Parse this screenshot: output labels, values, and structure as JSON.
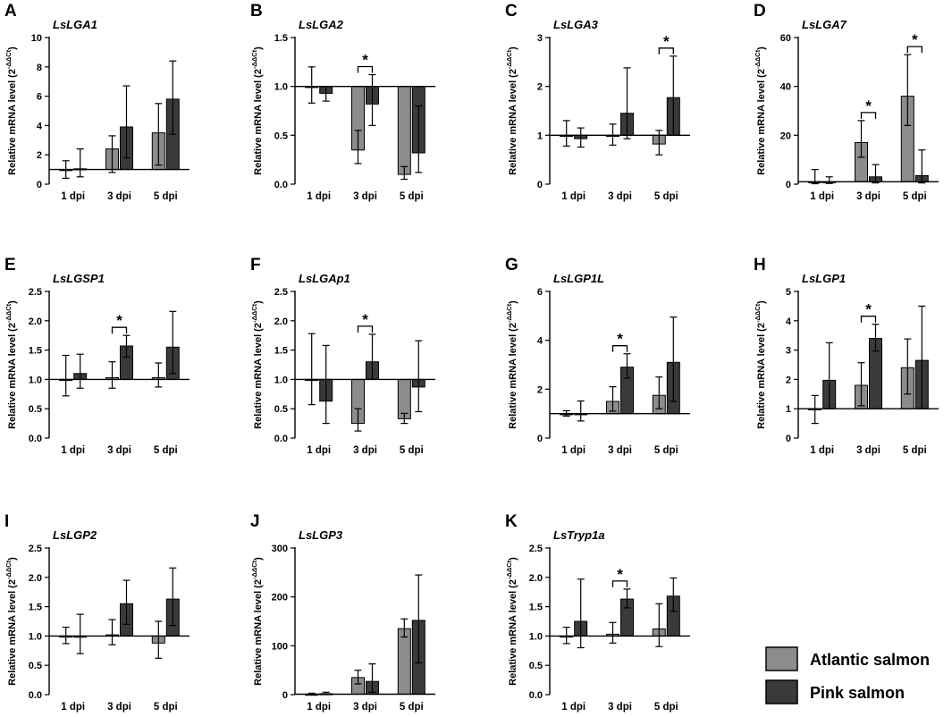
{
  "figure": {
    "x_categories": [
      "1 dpi",
      "3 dpi",
      "5 dpi"
    ],
    "y_label": "Relative mRNA level (2",
    "y_label_sup": "-ΔΔCt",
    "y_label_close": ")",
    "significance_marker": "*",
    "legend": [
      {
        "label": "Atlantic salmon",
        "color": "#8c8c8c"
      },
      {
        "label": "Pink salmon",
        "color": "#3a3a3a"
      }
    ]
  },
  "chart_data": [
    {
      "letter": "A",
      "type": "bar",
      "title": "LsLGA1",
      "ylim": [
        0,
        10
      ],
      "yticks": [
        "0",
        "2",
        "4",
        "6",
        "8",
        "10"
      ],
      "baseline": 1,
      "categories": [
        "1 dpi",
        "3 dpi",
        "5 dpi"
      ],
      "series": [
        {
          "name": "Atlantic salmon",
          "values": [
            1.0,
            2.4,
            3.5
          ],
          "err_low": [
            0.4,
            0.8,
            1.3
          ],
          "err_high": [
            1.6,
            3.3,
            5.5
          ]
        },
        {
          "name": "Pink salmon",
          "values": [
            1.05,
            3.9,
            5.8
          ],
          "err_low": [
            0.5,
            1.8,
            3.4
          ],
          "err_high": [
            2.4,
            6.7,
            8.4
          ]
        }
      ],
      "significance": []
    },
    {
      "letter": "B",
      "type": "bar",
      "title": "LsLGA2",
      "ylim": [
        0,
        1.5
      ],
      "yticks": [
        "0.0",
        "0.5",
        "1.0",
        "1.5"
      ],
      "baseline": 1,
      "categories": [
        "1 dpi",
        "3 dpi",
        "5 dpi"
      ],
      "series": [
        {
          "name": "Atlantic salmon",
          "values": [
            1.0,
            0.35,
            0.1
          ],
          "err_low": [
            0.83,
            0.21,
            0.05
          ],
          "err_high": [
            1.2,
            0.55,
            0.18
          ]
        },
        {
          "name": "Pink salmon",
          "values": [
            0.93,
            0.82,
            0.32
          ],
          "err_low": [
            0.85,
            0.6,
            0.12
          ],
          "err_high": [
            1.0,
            1.12,
            0.8
          ]
        }
      ],
      "significance": [
        1
      ]
    },
    {
      "letter": "C",
      "type": "bar",
      "title": "LsLGA3",
      "ylim": [
        0,
        3
      ],
      "yticks": [
        "0",
        "1",
        "2",
        "3"
      ],
      "baseline": 1,
      "categories": [
        "1 dpi",
        "3 dpi",
        "5 dpi"
      ],
      "series": [
        {
          "name": "Atlantic salmon",
          "values": [
            1.0,
            1.0,
            0.82
          ],
          "err_low": [
            0.78,
            0.8,
            0.6
          ],
          "err_high": [
            1.3,
            1.23,
            1.1
          ]
        },
        {
          "name": "Pink salmon",
          "values": [
            0.93,
            1.45,
            1.77
          ],
          "err_low": [
            0.76,
            0.93,
            1.0
          ],
          "err_high": [
            1.15,
            2.38,
            2.62
          ]
        }
      ],
      "significance": [
        2
      ]
    },
    {
      "letter": "D",
      "type": "bar",
      "title": "LsLGA7",
      "ylim": [
        0,
        60
      ],
      "yticks": [
        "0",
        "20",
        "40",
        "60"
      ],
      "baseline": 1,
      "categories": [
        "1 dpi",
        "3 dpi",
        "5 dpi"
      ],
      "series": [
        {
          "name": "Atlantic salmon",
          "values": [
            1.0,
            17.0,
            36.0
          ],
          "err_low": [
            0.2,
            11.0,
            24.0
          ],
          "err_high": [
            6.0,
            26.0,
            53.0
          ]
        },
        {
          "name": "Pink salmon",
          "values": [
            1.0,
            3.0,
            3.5
          ],
          "err_low": [
            0.3,
            0.5,
            0.5
          ],
          "err_high": [
            3.0,
            8.0,
            14.0
          ]
        }
      ],
      "significance": [
        1,
        2
      ]
    },
    {
      "letter": "E",
      "type": "bar",
      "title": "LsLGSP1",
      "ylim": [
        0,
        2.5
      ],
      "yticks": [
        "0.0",
        "0.5",
        "1.0",
        "1.5",
        "2.0",
        "2.5"
      ],
      "baseline": 1,
      "categories": [
        "1 dpi",
        "3 dpi",
        "5 dpi"
      ],
      "series": [
        {
          "name": "Atlantic salmon",
          "values": [
            1.0,
            1.03,
            1.03
          ],
          "err_low": [
            0.72,
            0.85,
            0.87
          ],
          "err_high": [
            1.41,
            1.3,
            1.28
          ]
        },
        {
          "name": "Pink salmon",
          "values": [
            1.1,
            1.57,
            1.55
          ],
          "err_low": [
            0.85,
            1.38,
            1.1
          ],
          "err_high": [
            1.43,
            1.75,
            2.16
          ]
        }
      ],
      "significance": [
        1
      ]
    },
    {
      "letter": "F",
      "type": "bar",
      "title": "LsLGAp1",
      "ylim": [
        0,
        2.5
      ],
      "yticks": [
        "0.0",
        "0.5",
        "1.0",
        "1.5",
        "2.0",
        "2.5"
      ],
      "baseline": 1,
      "categories": [
        "1 dpi",
        "3 dpi",
        "5 dpi"
      ],
      "series": [
        {
          "name": "Atlantic salmon",
          "values": [
            1.0,
            0.25,
            0.33
          ],
          "err_low": [
            0.57,
            0.12,
            0.25
          ],
          "err_high": [
            1.78,
            0.5,
            0.42
          ]
        },
        {
          "name": "Pink salmon",
          "values": [
            0.63,
            1.3,
            0.87
          ],
          "err_low": [
            0.25,
            1.0,
            0.45
          ],
          "err_high": [
            1.58,
            1.77,
            1.66
          ]
        }
      ],
      "significance": [
        1
      ]
    },
    {
      "letter": "G",
      "type": "bar",
      "title": "LsLGP1L",
      "ylim": [
        0,
        6
      ],
      "yticks": [
        "0",
        "2",
        "4",
        "6"
      ],
      "baseline": 1,
      "categories": [
        "1 dpi",
        "3 dpi",
        "5 dpi"
      ],
      "series": [
        {
          "name": "Atlantic salmon",
          "values": [
            1.0,
            1.5,
            1.75
          ],
          "err_low": [
            0.9,
            1.1,
            1.2
          ],
          "err_high": [
            1.12,
            2.1,
            2.5
          ]
        },
        {
          "name": "Pink salmon",
          "values": [
            1.0,
            2.9,
            3.1
          ],
          "err_low": [
            0.7,
            2.45,
            1.5
          ],
          "err_high": [
            1.52,
            3.45,
            4.95
          ]
        }
      ],
      "significance": [
        1
      ]
    },
    {
      "letter": "H",
      "type": "bar",
      "title": "LsLGP1",
      "ylim": [
        0,
        5
      ],
      "yticks": [
        "0",
        "1",
        "2",
        "3",
        "4",
        "5"
      ],
      "baseline": 1,
      "categories": [
        "1 dpi",
        "3 dpi",
        "5 dpi"
      ],
      "series": [
        {
          "name": "Atlantic salmon",
          "values": [
            1.0,
            1.8,
            2.4
          ],
          "err_low": [
            0.5,
            1.1,
            1.5
          ],
          "err_high": [
            1.45,
            2.57,
            3.38
          ]
        },
        {
          "name": "Pink salmon",
          "values": [
            1.97,
            3.4,
            2.65
          ],
          "err_low": [
            1.0,
            2.97,
            1.0
          ],
          "err_high": [
            3.25,
            3.88,
            4.5
          ]
        }
      ],
      "significance": [
        1
      ]
    },
    {
      "letter": "I",
      "type": "bar",
      "title": "LsLGP2",
      "ylim": [
        0,
        2.5
      ],
      "yticks": [
        "0.0",
        "0.5",
        "1.0",
        "1.5",
        "2.0",
        "2.5"
      ],
      "baseline": 1,
      "categories": [
        "1 dpi",
        "3 dpi",
        "5 dpi"
      ],
      "series": [
        {
          "name": "Atlantic salmon",
          "values": [
            1.0,
            1.02,
            0.88
          ],
          "err_low": [
            0.87,
            0.85,
            0.62
          ],
          "err_high": [
            1.15,
            1.28,
            1.25
          ]
        },
        {
          "name": "Pink salmon",
          "values": [
            0.98,
            1.55,
            1.63
          ],
          "err_low": [
            0.7,
            1.2,
            1.18
          ],
          "err_high": [
            1.37,
            1.95,
            2.16
          ]
        }
      ],
      "significance": []
    },
    {
      "letter": "J",
      "type": "bar",
      "title": "LsLGP3",
      "ylim": [
        0,
        300
      ],
      "yticks": [
        "0",
        "100",
        "200",
        "300"
      ],
      "baseline": 1,
      "categories": [
        "1 dpi",
        "3 dpi",
        "5 dpi"
      ],
      "series": [
        {
          "name": "Atlantic salmon",
          "values": [
            1.0,
            35.0,
            135.0
          ],
          "err_low": [
            0.5,
            22.0,
            118.0
          ],
          "err_high": [
            3.0,
            50.0,
            155.0
          ]
        },
        {
          "name": "Pink salmon",
          "values": [
            2.0,
            27.0,
            152.0
          ],
          "err_low": [
            0.5,
            5.0,
            65.0
          ],
          "err_high": [
            5.0,
            63.0,
            245.0
          ]
        }
      ],
      "significance": []
    },
    {
      "letter": "K",
      "type": "bar",
      "title": "LsTryp1a",
      "ylim": [
        0,
        2.5
      ],
      "yticks": [
        "0.0",
        "0.5",
        "1.0",
        "1.5",
        "2.0",
        "2.5"
      ],
      "baseline": 1,
      "categories": [
        "1 dpi",
        "3 dpi",
        "5 dpi"
      ],
      "series": [
        {
          "name": "Atlantic salmon",
          "values": [
            1.0,
            1.03,
            1.12
          ],
          "err_low": [
            0.87,
            0.88,
            0.82
          ],
          "err_high": [
            1.15,
            1.23,
            1.55
          ]
        },
        {
          "name": "Pink salmon",
          "values": [
            1.25,
            1.63,
            1.68
          ],
          "err_low": [
            0.8,
            1.48,
            1.42
          ],
          "err_high": [
            1.97,
            1.8,
            1.99
          ]
        }
      ],
      "significance": [
        1
      ]
    }
  ]
}
